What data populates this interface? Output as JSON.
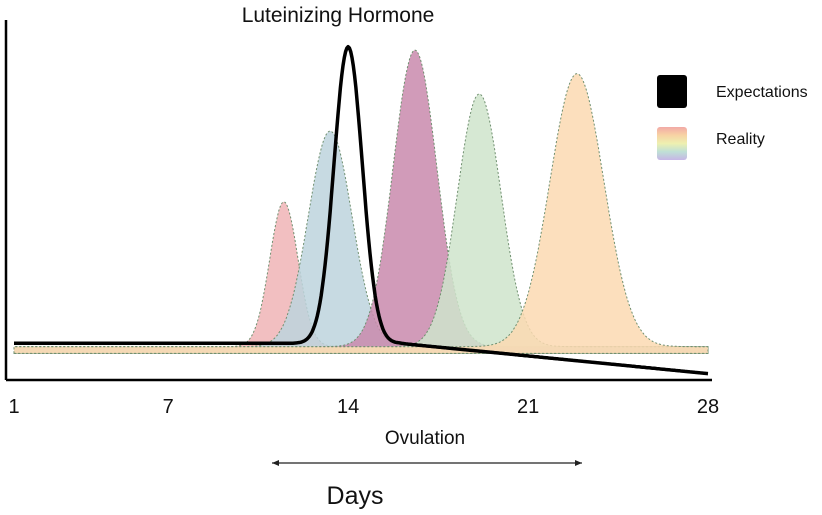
{
  "chart_data": {
    "type": "area",
    "title": "Luteinizing Hormone",
    "xlabel": "Days",
    "annotation": "Ovulation",
    "xlim": [
      1,
      28
    ],
    "ylim": [
      0,
      100
    ],
    "xticks": [
      "1",
      "7",
      "14",
      "21",
      "28"
    ],
    "grid": false,
    "legend_position": "right",
    "legend": [
      {
        "label": "Expectations",
        "style": "solid-black"
      },
      {
        "label": "Reality",
        "style": "rainbow-gradient"
      }
    ],
    "series": [
      {
        "name": "Expectations",
        "color": "#000000",
        "baseline": 10,
        "peak_x": 14.0,
        "peak_y": 98,
        "width": 0.55
      },
      {
        "name": "Reality",
        "color": "#f0b4b6",
        "baseline": 9,
        "peak_x": 11.5,
        "peak_y": 52,
        "width": 0.55
      },
      {
        "name": "Reality",
        "color": "#bdd3dd",
        "baseline": 9,
        "peak_x": 13.3,
        "peak_y": 73,
        "width": 0.85
      },
      {
        "name": "Reality",
        "color": "#c98aad",
        "baseline": 9,
        "peak_x": 16.6,
        "peak_y": 97,
        "width": 0.85
      },
      {
        "name": "Reality",
        "color": "#cfe4cb",
        "baseline": 9,
        "peak_x": 19.1,
        "peak_y": 84,
        "width": 0.85
      },
      {
        "name": "Reality",
        "color": "#fbd9b1",
        "baseline": 9,
        "peak_x": 22.9,
        "peak_y": 90,
        "width": 1.05
      }
    ]
  }
}
